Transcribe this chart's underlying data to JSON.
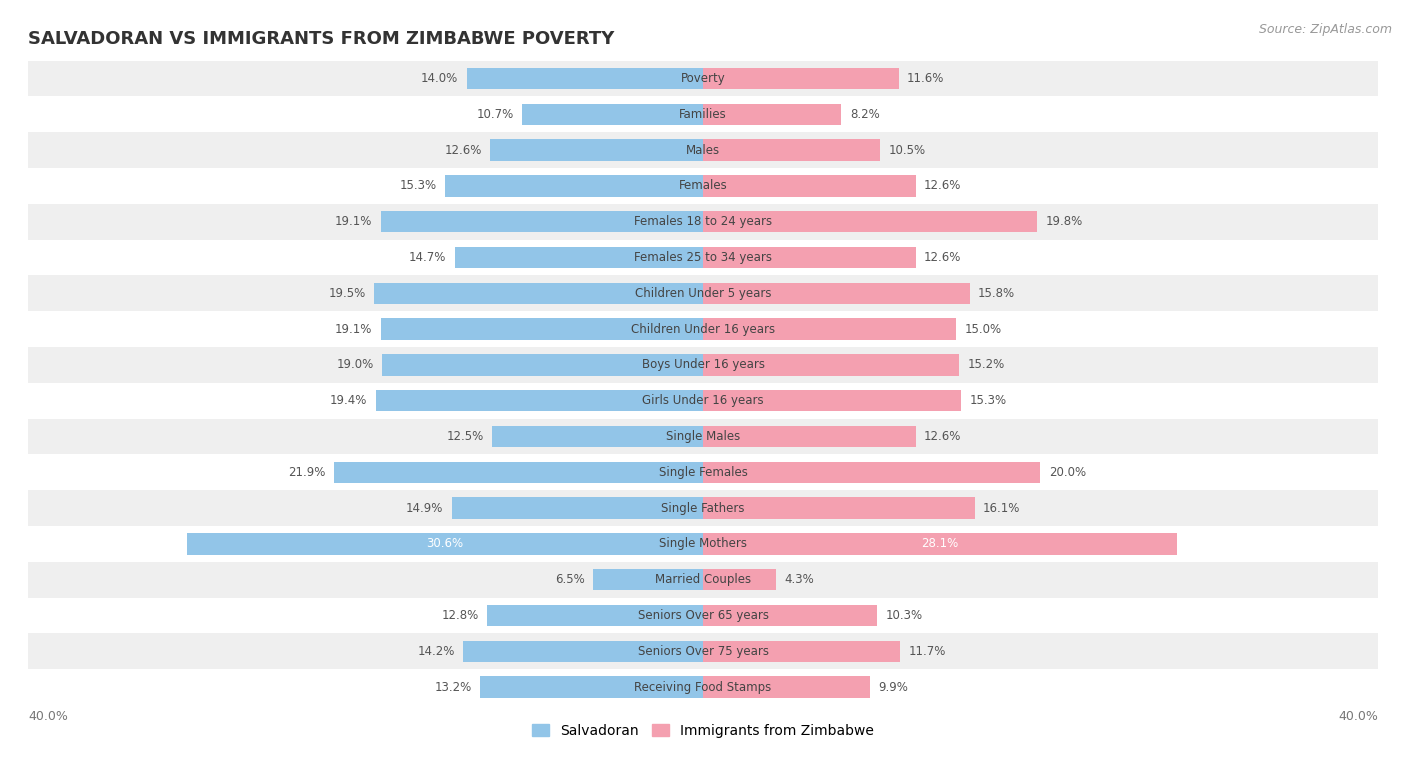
{
  "title": "SALVADORAN VS IMMIGRANTS FROM ZIMBABWE POVERTY",
  "source": "Source: ZipAtlas.com",
  "categories": [
    "Poverty",
    "Families",
    "Males",
    "Females",
    "Females 18 to 24 years",
    "Females 25 to 34 years",
    "Children Under 5 years",
    "Children Under 16 years",
    "Boys Under 16 years",
    "Girls Under 16 years",
    "Single Males",
    "Single Females",
    "Single Fathers",
    "Single Mothers",
    "Married Couples",
    "Seniors Over 65 years",
    "Seniors Over 75 years",
    "Receiving Food Stamps"
  ],
  "salvadoran": [
    14.0,
    10.7,
    12.6,
    15.3,
    19.1,
    14.7,
    19.5,
    19.1,
    19.0,
    19.4,
    12.5,
    21.9,
    14.9,
    30.6,
    6.5,
    12.8,
    14.2,
    13.2
  ],
  "zimbabwe": [
    11.6,
    8.2,
    10.5,
    12.6,
    19.8,
    12.6,
    15.8,
    15.0,
    15.2,
    15.3,
    12.6,
    20.0,
    16.1,
    28.1,
    4.3,
    10.3,
    11.7,
    9.9
  ],
  "salvadoran_color": "#92C5E8",
  "zimbabwe_color": "#F4A0B0",
  "highlight_threshold": 25.0,
  "background_color": "#FFFFFF",
  "row_alt_color": "#EFEFEF",
  "xlim": 40.0,
  "bar_height": 0.6,
  "legend_salvadoran": "Salvadoran",
  "legend_zimbabwe": "Immigrants from Zimbabwe"
}
